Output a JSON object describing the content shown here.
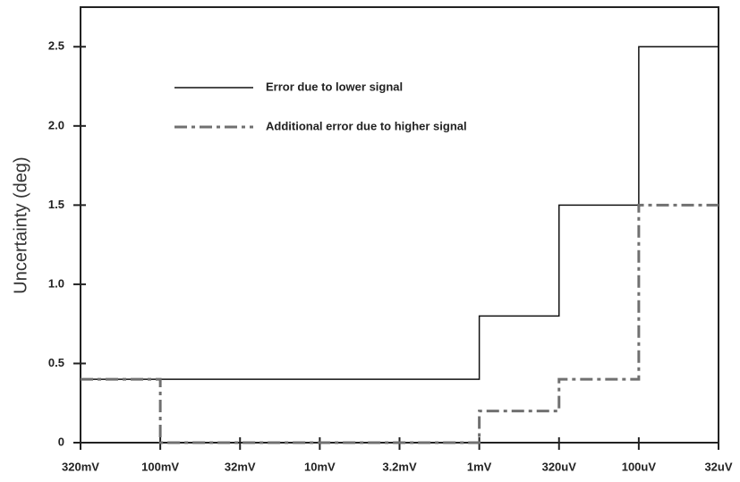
{
  "chart_data": {
    "type": "line",
    "drawstyle": "steps-post",
    "ylabel": "Uncertainty (deg)",
    "categories": [
      "320mV",
      "100mV",
      "32mV",
      "10mV",
      "3.2mV",
      "1mV",
      "320uV",
      "100uV",
      "32uV"
    ],
    "series": [
      {
        "name": "Error due to lower signal",
        "color": "#111111",
        "dash": "solid",
        "values": [
          0.4,
          0.4,
          0.4,
          0.4,
          0.4,
          0.8,
          1.5,
          2.5,
          2.5
        ]
      },
      {
        "name": "Additional error due to higher signal",
        "color": "#707070",
        "dash": "dashdot",
        "values": [
          0.4,
          0,
          0,
          0,
          0,
          0.2,
          0.4,
          1.5,
          1.5
        ]
      }
    ],
    "ylim": [
      0,
      2.75
    ],
    "yticks": [
      0,
      0.5,
      {
        "value": 1.0,
        "label": "1.0"
      },
      1.5,
      {
        "value": 2.0,
        "label": "2.0"
      },
      2.5
    ],
    "grid": false,
    "legend": "upper left"
  }
}
